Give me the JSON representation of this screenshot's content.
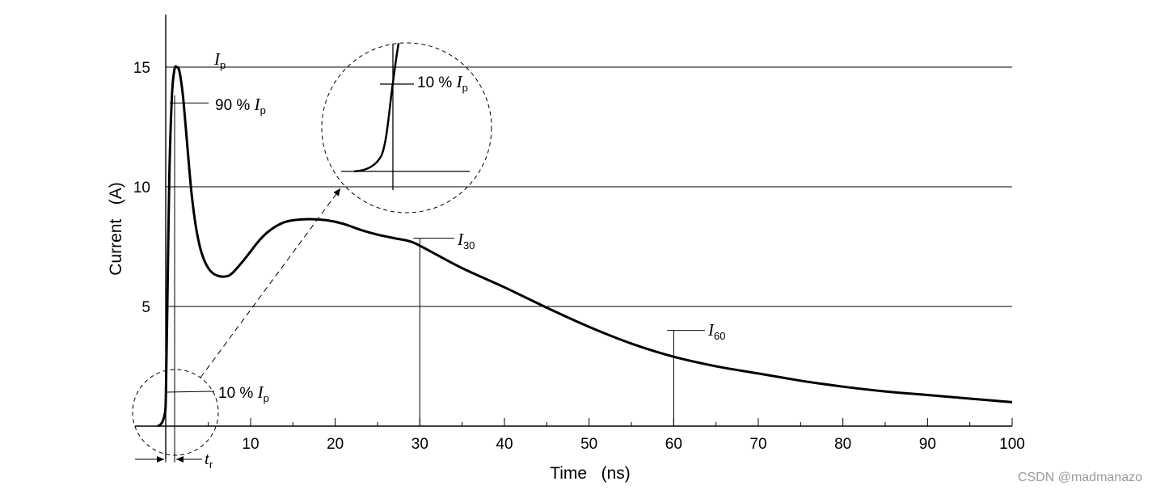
{
  "chart_data": {
    "type": "line",
    "title": "",
    "xlabel": "Time   (ns)",
    "ylabel": "Current   (A)",
    "xlim": [
      -10,
      100
    ],
    "ylim": [
      0,
      16.5
    ],
    "x_ticks": [
      10,
      20,
      30,
      40,
      50,
      60,
      70,
      80,
      90,
      100
    ],
    "y_ticks": [
      5,
      10,
      15
    ],
    "grid": "horizontal at y ticks",
    "series": [
      {
        "x": [
          -1.0,
          -0.7,
          -0.4,
          -0.1,
          0.0,
          0.2,
          0.4,
          0.7,
          1.0,
          1.3,
          1.6,
          2.0,
          2.5,
          3.0,
          3.5,
          4.0,
          4.5,
          5.0,
          5.5,
          6.0,
          6.5,
          7.0,
          7.5,
          8.0,
          9.0,
          10.0,
          11.0,
          12.0,
          13.0,
          14.0,
          15.0,
          17.0,
          19.0,
          21.0,
          23.0,
          25.0,
          27.0,
          29.0,
          31.0,
          35.0,
          40.0,
          45.0,
          50.0,
          55.0,
          60.0,
          65.0,
          70.0,
          75.0,
          80.0,
          85.0,
          90.0,
          95.0,
          100.0
        ],
        "y": [
          0.0,
          0.05,
          0.2,
          0.6,
          1.5,
          6.0,
          10.5,
          13.8,
          14.9,
          15.0,
          14.8,
          13.8,
          11.8,
          9.8,
          8.4,
          7.5,
          6.95,
          6.6,
          6.4,
          6.3,
          6.25,
          6.25,
          6.3,
          6.45,
          6.85,
          7.3,
          7.75,
          8.1,
          8.35,
          8.52,
          8.6,
          8.65,
          8.6,
          8.45,
          8.2,
          8.0,
          7.85,
          7.7,
          7.35,
          6.6,
          5.8,
          4.95,
          4.15,
          3.45,
          2.9,
          2.5,
          2.2,
          1.9,
          1.65,
          1.45,
          1.3,
          1.15,
          1.0
        ]
      }
    ],
    "annotations": {
      "ip_label": "I",
      "ip_sub": "p",
      "p90_prefix": "90 % ",
      "p10_prefix": "10 % ",
      "i30_label": "I",
      "i30_sub": "30",
      "i60_label": "I",
      "i60_sub": "60",
      "tr_label": "t",
      "tr_sub": "r"
    }
  },
  "watermark": "CSDN @madmanazo"
}
